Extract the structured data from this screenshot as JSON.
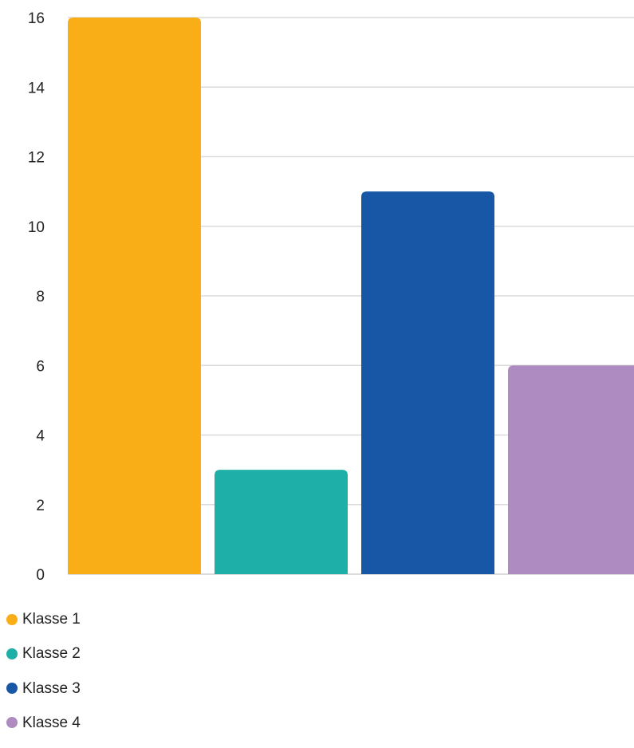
{
  "chart_data": {
    "type": "bar",
    "categories": [
      "Klasse 1",
      "Klasse 2",
      "Klasse 3",
      "Klasse 4"
    ],
    "values": [
      16,
      3,
      11,
      6
    ],
    "colors": [
      "#f9ae17",
      "#1eb0a8",
      "#1757a6",
      "#ae8bc0"
    ],
    "title": "",
    "xlabel": "",
    "ylabel": "",
    "ylim": [
      0,
      16
    ],
    "yticks": [
      0,
      2,
      4,
      6,
      8,
      10,
      12,
      14,
      16
    ],
    "grid": true,
    "legend": "bottom-left"
  }
}
